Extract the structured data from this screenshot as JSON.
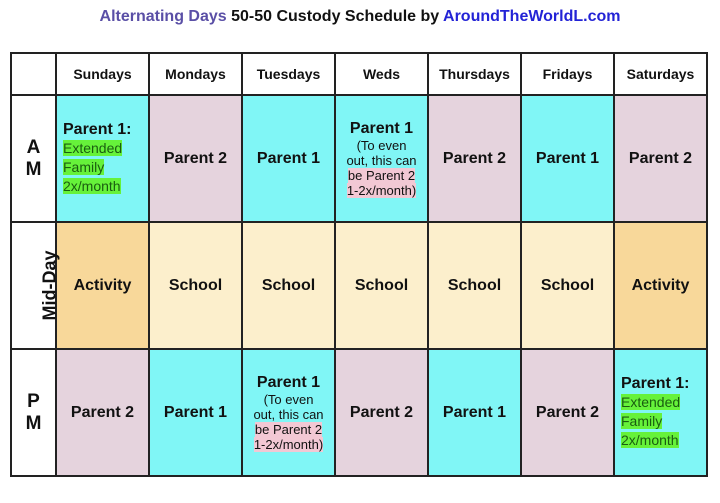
{
  "title": {
    "part1": "Alternating Days",
    "part2": " 50-50 Custody Schedule by ",
    "part3": "AroundTheWorldL.com"
  },
  "colors": {
    "parent1": "#80f6f6",
    "parent2": "#e5d3dd",
    "activity": "#f8d89a",
    "school": "#fcefcc",
    "highlight": "#66f23a"
  },
  "days": [
    "Sundays",
    "Mondays",
    "Tuesdays",
    "Weds",
    "Thursdays",
    "Fridays",
    "Saturdays"
  ],
  "rows": {
    "am": {
      "label1": "A",
      "label2": "M",
      "cells": [
        "Parent 1:",
        "Parent 2",
        "Parent 1",
        "Parent 1",
        "Parent 2",
        "Parent 1",
        "Parent 2"
      ]
    },
    "mid": {
      "label": "Mid-Day",
      "cells": [
        "Activity",
        "School",
        "School",
        "School",
        "School",
        "School",
        "Activity"
      ]
    },
    "pm": {
      "label1": "P",
      "label2": "M",
      "cells": [
        "Parent 2",
        "Parent 1",
        "Parent 1",
        "Parent 2",
        "Parent 1",
        "Parent 2",
        "Parent 1:"
      ]
    }
  },
  "notes": {
    "extended": [
      "Extended",
      "Family",
      "2x/month"
    ],
    "even_out": {
      "line1": "(To even",
      "line2": "out, this can",
      "line3": "be Parent 2",
      "line4": "1-2x/month)"
    }
  }
}
